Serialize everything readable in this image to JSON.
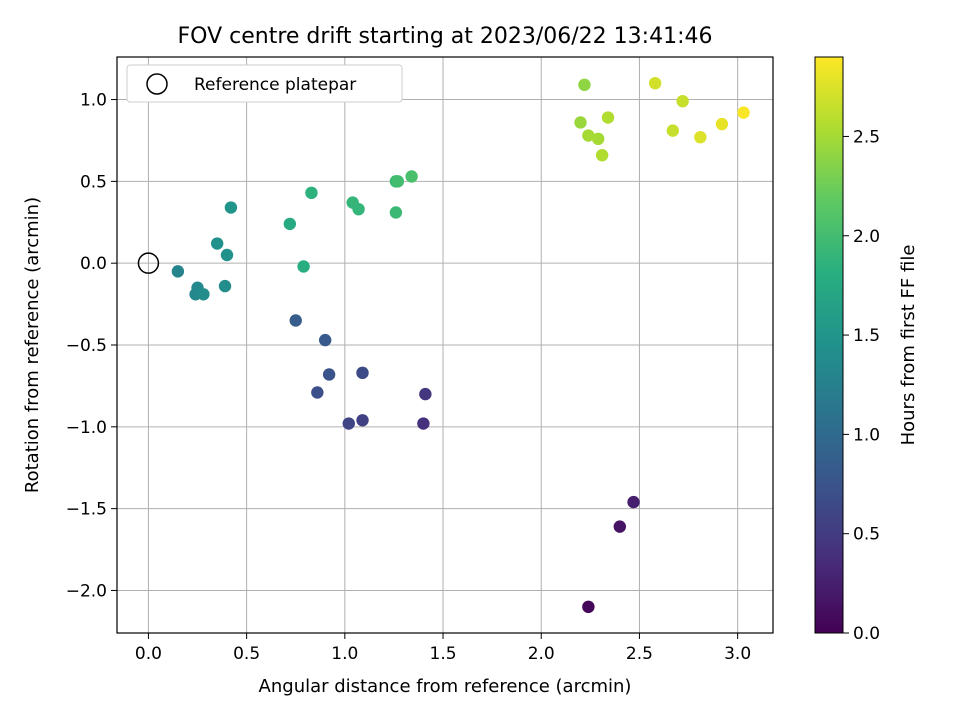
{
  "chart_data": {
    "type": "scatter",
    "title": "FOV centre drift starting at 2023/06/22 13:41:46",
    "xlabel": "Angular distance from reference (arcmin)",
    "ylabel": "Rotation from reference (arcmin)",
    "xlim": [
      -0.16,
      3.18
    ],
    "ylim": [
      -2.26,
      1.26
    ],
    "xticks": [
      0.0,
      0.5,
      1.0,
      1.5,
      2.0,
      2.5,
      3.0
    ],
    "xtick_labels": [
      "0.0",
      "0.5",
      "1.0",
      "1.5",
      "2.0",
      "2.5",
      "3.0"
    ],
    "yticks": [
      1.0,
      0.5,
      0.0,
      -0.5,
      -1.0,
      -1.5,
      -2.0
    ],
    "ytick_labels": [
      "1.0",
      "0.5",
      "0.0",
      "−0.5",
      "−1.0",
      "−1.5",
      "−2.0"
    ],
    "grid": true,
    "legend": {
      "position": "upper-left",
      "entries": [
        "Reference platepar"
      ]
    },
    "reference_point": {
      "x": 0.0,
      "y": 0.0,
      "marker": "open-circle"
    },
    "colorbar": {
      "label": "Hours from first FF file",
      "colormap": "viridis",
      "range": [
        0.0,
        2.9
      ],
      "ticks": [
        0.0,
        0.5,
        1.0,
        1.5,
        2.0,
        2.5
      ],
      "tick_labels": [
        "0.0",
        "0.5",
        "1.0",
        "1.5",
        "2.0",
        "2.5"
      ]
    },
    "points": [
      {
        "x": 2.24,
        "y": -2.1,
        "hours": 0.05
      },
      {
        "x": 2.4,
        "y": -1.61,
        "hours": 0.15
      },
      {
        "x": 2.47,
        "y": -1.46,
        "hours": 0.25
      },
      {
        "x": 1.4,
        "y": -0.98,
        "hours": 0.4
      },
      {
        "x": 1.41,
        "y": -0.8,
        "hours": 0.45
      },
      {
        "x": 1.09,
        "y": -0.96,
        "hours": 0.55
      },
      {
        "x": 1.02,
        "y": -0.98,
        "hours": 0.6
      },
      {
        "x": 1.09,
        "y": -0.67,
        "hours": 0.65
      },
      {
        "x": 0.86,
        "y": -0.79,
        "hours": 0.7
      },
      {
        "x": 0.92,
        "y": -0.68,
        "hours": 0.75
      },
      {
        "x": 0.9,
        "y": -0.47,
        "hours": 0.8
      },
      {
        "x": 0.75,
        "y": -0.35,
        "hours": 0.85
      },
      {
        "x": 0.15,
        "y": -0.05,
        "hours": 1.3
      },
      {
        "x": 0.25,
        "y": -0.15,
        "hours": 1.35
      },
      {
        "x": 0.24,
        "y": -0.19,
        "hours": 1.35
      },
      {
        "x": 0.28,
        "y": -0.19,
        "hours": 1.4
      },
      {
        "x": 0.39,
        "y": -0.14,
        "hours": 1.4
      },
      {
        "x": 0.4,
        "y": 0.05,
        "hours": 1.45
      },
      {
        "x": 0.35,
        "y": 0.12,
        "hours": 1.45
      },
      {
        "x": 0.42,
        "y": 0.34,
        "hours": 1.5
      },
      {
        "x": 0.72,
        "y": 0.24,
        "hours": 1.75
      },
      {
        "x": 0.79,
        "y": -0.02,
        "hours": 1.8
      },
      {
        "x": 0.83,
        "y": 0.43,
        "hours": 1.85
      },
      {
        "x": 1.04,
        "y": 0.37,
        "hours": 1.9
      },
      {
        "x": 1.07,
        "y": 0.33,
        "hours": 1.9
      },
      {
        "x": 1.26,
        "y": 0.31,
        "hours": 1.95
      },
      {
        "x": 1.26,
        "y": 0.5,
        "hours": 1.95
      },
      {
        "x": 1.27,
        "y": 0.5,
        "hours": 2.0
      },
      {
        "x": 1.34,
        "y": 0.53,
        "hours": 2.05
      },
      {
        "x": 2.22,
        "y": 1.09,
        "hours": 2.4
      },
      {
        "x": 2.2,
        "y": 0.86,
        "hours": 2.45
      },
      {
        "x": 2.24,
        "y": 0.78,
        "hours": 2.5
      },
      {
        "x": 2.29,
        "y": 0.76,
        "hours": 2.5
      },
      {
        "x": 2.31,
        "y": 0.66,
        "hours": 2.55
      },
      {
        "x": 2.34,
        "y": 0.89,
        "hours": 2.55
      },
      {
        "x": 2.67,
        "y": 0.81,
        "hours": 2.65
      },
      {
        "x": 2.72,
        "y": 0.99,
        "hours": 2.65
      },
      {
        "x": 2.58,
        "y": 1.1,
        "hours": 2.7
      },
      {
        "x": 2.81,
        "y": 0.77,
        "hours": 2.75
      },
      {
        "x": 2.92,
        "y": 0.85,
        "hours": 2.8
      },
      {
        "x": 3.03,
        "y": 0.92,
        "hours": 2.88
      }
    ]
  }
}
